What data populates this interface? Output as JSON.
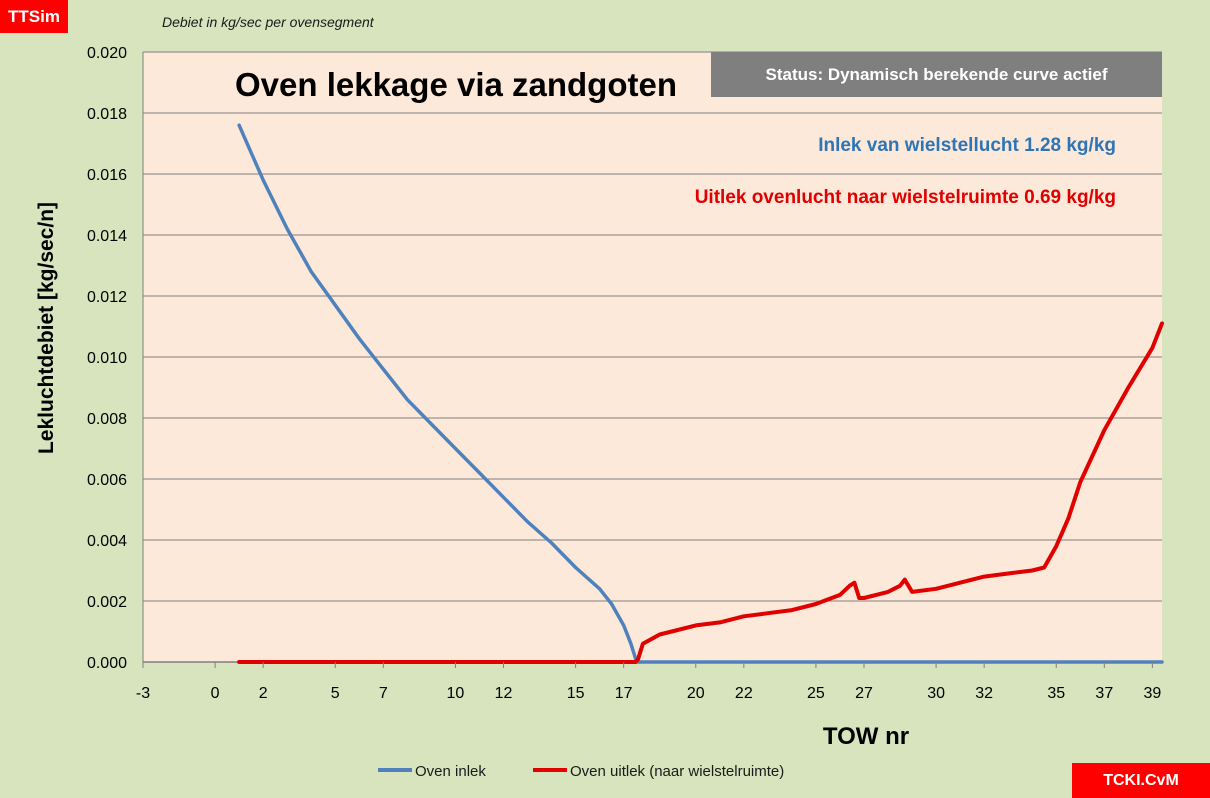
{
  "header": {
    "app_badge": "TTSim",
    "subtitle": "Debiet in kg/sec per ovensegment",
    "corner_badge": "TCKI.CvM"
  },
  "status": {
    "text": "Status: Dynamisch  berekende curve actief"
  },
  "colors": {
    "background": "#d7e4bd",
    "plot_area": "#fde9d9",
    "inlek": "#4f81bd",
    "uitlek": "#e00000",
    "inlek_text": "#2e75b6",
    "uitlek_text": "#e00000",
    "badge": "#ff0000",
    "status_box": "#7f7f7f"
  },
  "chart_data": {
    "type": "line",
    "title": "Oven lekkage via zandgoten",
    "xlabel": "TOW nr",
    "ylabel": "Lekluchtdebiet [kg/sec/n]",
    "xlim": [
      -3,
      39.4
    ],
    "ylim": [
      0,
      0.02
    ],
    "x_ticks": [
      -3,
      0,
      2,
      5,
      7,
      10,
      12,
      15,
      17,
      20,
      22,
      25,
      27,
      30,
      32,
      35,
      37,
      39
    ],
    "x_tick_labels": [
      "-3",
      "0",
      "2",
      "5",
      "7",
      "10",
      "12",
      "15",
      "17",
      "20",
      "22",
      "25",
      "27",
      "30",
      "32",
      "35",
      "37",
      "39"
    ],
    "y_ticks": [
      0,
      0.002,
      0.004,
      0.006,
      0.008,
      0.01,
      0.012,
      0.014,
      0.016,
      0.018,
      0.02
    ],
    "y_tick_labels": [
      "0.000",
      "0.002",
      "0.004",
      "0.006",
      "0.008",
      "0.010",
      "0.012",
      "0.014",
      "0.016",
      "0.018",
      "0.020"
    ],
    "grid": true,
    "legend": "bottom",
    "annotations": [
      {
        "id": "inlek",
        "text": "Inlek van wielstellucht 1.28 kg/kg"
      },
      {
        "id": "uitlek",
        "text": "Uitlek ovenlucht naar wielstelruimte 0.69 kg/kg"
      }
    ],
    "series": [
      {
        "name": "Oven inlek",
        "color": "#4f81bd",
        "x": [
          1,
          2,
          3,
          4,
          5,
          6,
          7,
          8,
          9,
          10,
          11,
          12,
          13,
          14,
          15,
          16,
          16.5,
          17,
          17.3,
          17.5,
          17.6,
          18,
          20,
          25,
          30,
          35,
          39.4
        ],
        "y": [
          0.0176,
          0.0158,
          0.0142,
          0.0128,
          0.0117,
          0.0106,
          0.0096,
          0.0086,
          0.0078,
          0.007,
          0.0062,
          0.0054,
          0.0046,
          0.0039,
          0.0031,
          0.0024,
          0.0019,
          0.0012,
          0.0006,
          0.0001,
          0,
          0,
          0,
          0,
          0,
          0,
          0
        ]
      },
      {
        "name": "Oven uitlek (naar wielstelruimte)",
        "color": "#e00000",
        "x": [
          1,
          5,
          10,
          15,
          17.5,
          17.6,
          17.8,
          18.5,
          19,
          20,
          21,
          22,
          23,
          24,
          25,
          26,
          26.4,
          26.6,
          26.8,
          27,
          28,
          28.5,
          28.7,
          29,
          30,
          31,
          32,
          33,
          34,
          34.5,
          35,
          35.5,
          36,
          37,
          38,
          39,
          39.4
        ],
        "y": [
          0,
          0,
          0,
          0,
          0,
          0.0001,
          0.0006,
          0.0009,
          0.001,
          0.0012,
          0.0013,
          0.0015,
          0.0016,
          0.0017,
          0.0019,
          0.0022,
          0.0025,
          0.0026,
          0.0021,
          0.0021,
          0.0023,
          0.0025,
          0.0027,
          0.0023,
          0.0024,
          0.0026,
          0.0028,
          0.0029,
          0.003,
          0.0031,
          0.0038,
          0.0047,
          0.0059,
          0.0076,
          0.009,
          0.0103,
          0.0111
        ]
      }
    ]
  }
}
